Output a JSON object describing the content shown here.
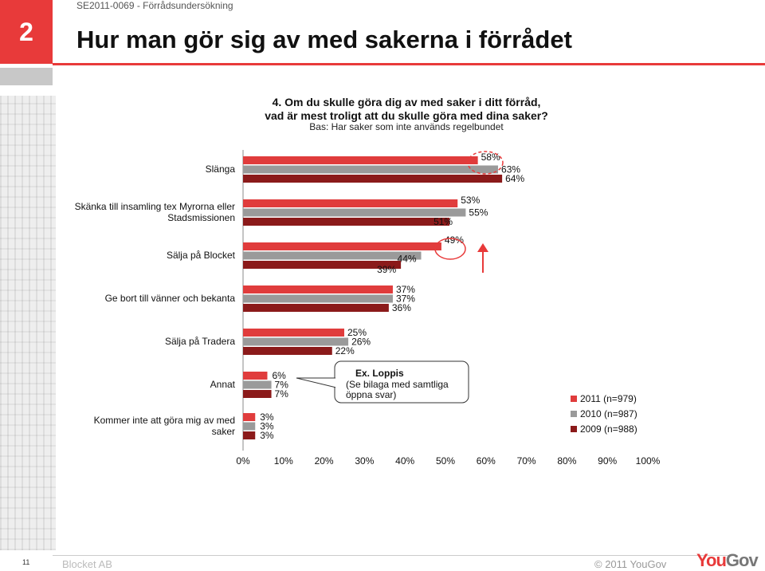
{
  "header": {
    "code": "SE2011-0069 - Förrådsundersökning",
    "section_number": "2",
    "title": "Hur man gör sig av med sakerna i förrådet"
  },
  "question": {
    "line1": "4. Om du skulle göra dig av med saker i ditt förråd,",
    "line2": "vad är mest troligt att du skulle göra med dina saker?",
    "base": "Bas: Har saker som inte används regelbundet"
  },
  "footer": {
    "page_number": "11",
    "company": "Blocket AB",
    "copyright": "© 2011 YouGov",
    "logo_you": "You",
    "logo_gov": "Gov"
  },
  "colors": {
    "s2011": "#e03c3c",
    "s2010": "#9a9a9a",
    "s2009": "#8b1a1a",
    "accent": "#e83a3a"
  },
  "chart_data": {
    "type": "bar",
    "orientation": "horizontal",
    "categories": [
      [
        "Slänga"
      ],
      [
        "Skänka till insamling tex Myrorna eller",
        "Stadsmissionen"
      ],
      [
        "Sälja på Blocket"
      ],
      [
        "Ge bort till vänner och bekanta"
      ],
      [
        "Sälja på Tradera"
      ],
      [
        "Annat"
      ],
      [
        "Kommer inte att göra mig av med",
        "saker"
      ]
    ],
    "series": [
      {
        "name": "2011 (n=979)",
        "values": [
          58,
          53,
          49,
          37,
          25,
          6,
          3
        ]
      },
      {
        "name": "2010 (n=987)",
        "values": [
          63,
          55,
          44,
          37,
          26,
          7,
          3
        ]
      },
      {
        "name": "2009 (n=988)",
        "values": [
          64,
          51,
          39,
          36,
          22,
          7,
          3
        ]
      }
    ],
    "value_suffix": "%",
    "xlim": [
      0,
      100
    ],
    "ticks": [
      "0%",
      "10%",
      "20%",
      "30%",
      "40%",
      "50%",
      "60%",
      "70%",
      "80%",
      "90%",
      "100%"
    ],
    "annotation": {
      "title": "Ex. Loppis",
      "line1": "(Se bilaga med samtliga",
      "line2": "öppna svar)"
    }
  }
}
